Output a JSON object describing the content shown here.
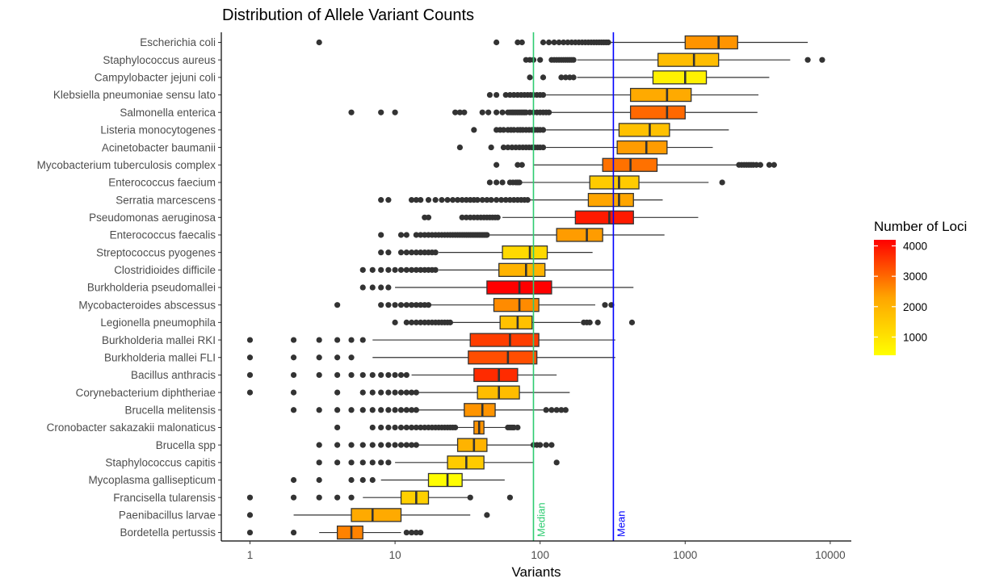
{
  "chart_data": {
    "type": "boxplot",
    "title": "Distribution of Allele Variant Counts",
    "xlabel": "Variants",
    "ylabel": "",
    "x_scale": "log10",
    "x_ticks": [
      1,
      10,
      100,
      1000,
      10000
    ],
    "x_tick_labels": [
      "1",
      "10",
      "100",
      "1000",
      "10000"
    ],
    "xlim": [
      0.64,
      12000
    ],
    "grid": false,
    "colors": {
      "axis": "#000000",
      "box_edge": "#333333",
      "median_line": "#2ecc71",
      "mean_line": "#0000ff",
      "outlier": "#333333",
      "gradient_low": "#ffff00",
      "gradient_high": "#ff0000"
    },
    "reference_lines": [
      {
        "label": "Median",
        "value": 90,
        "color": "#2ecc71"
      },
      {
        "label": "Mean",
        "value": 320,
        "color": "#0000ff"
      }
    ],
    "legend": {
      "title": "Number of Loci",
      "position": "right",
      "range": [
        400,
        4200
      ],
      "ticks": [
        1000,
        2000,
        3000,
        4000
      ],
      "tick_labels": [
        "1000",
        "2000",
        "3000",
        "4000"
      ]
    },
    "species": [
      {
        "name": "Escherichia coli",
        "loci": 2500,
        "wl": 300,
        "q1": 1000,
        "med": 1700,
        "q3": 2300,
        "wh": 7000,
        "outliers": [
          3,
          50,
          70,
          75,
          105,
          115,
          125,
          135,
          145,
          155,
          165,
          175,
          185,
          195,
          205,
          215,
          225,
          235,
          245,
          255,
          265,
          275,
          285,
          295
        ]
      },
      {
        "name": "Staphylococcus aureus",
        "loci": 1800,
        "wl": 180,
        "q1": 650,
        "med": 1150,
        "q3": 1700,
        "wh": 5300,
        "outliers": [
          80,
          85,
          90,
          100,
          120,
          125,
          130,
          135,
          140,
          145,
          150,
          155,
          160,
          165,
          170,
          7000,
          8800
        ]
      },
      {
        "name": "Campylobacter jejuni coli",
        "loci": 700,
        "wl": 180,
        "q1": 600,
        "med": 1000,
        "q3": 1400,
        "wh": 3800,
        "outliers": [
          85,
          105,
          140,
          150,
          160,
          170
        ]
      },
      {
        "name": "Klebsiella pneumoniae sensu lato",
        "loci": 2200,
        "wl": 110,
        "q1": 420,
        "med": 750,
        "q3": 1100,
        "wh": 3200,
        "outliers": [
          45,
          50,
          58,
          62,
          66,
          70,
          74,
          78,
          82,
          86,
          90,
          95,
          100,
          105
        ]
      },
      {
        "name": "Salmonella enterica",
        "loci": 3000,
        "wl": 120,
        "q1": 420,
        "med": 750,
        "q3": 1000,
        "wh": 3150,
        "outliers": [
          5,
          8,
          10,
          26,
          28,
          30,
          40,
          44,
          50,
          55,
          60,
          62,
          64,
          66,
          68,
          70,
          72,
          74,
          76,
          78,
          80,
          85,
          90,
          95,
          100,
          105,
          110,
          115
        ]
      },
      {
        "name": "Listeria monocytogenes",
        "loci": 1700,
        "wl": 110,
        "q1": 350,
        "med": 570,
        "q3": 780,
        "wh": 2000,
        "outliers": [
          35,
          50,
          53,
          56,
          60,
          63,
          66,
          70,
          73,
          76,
          80,
          84,
          88,
          92,
          96,
          100,
          105
        ]
      },
      {
        "name": "Acinetobacter baumanii",
        "loci": 2400,
        "wl": 110,
        "q1": 340,
        "med": 540,
        "q3": 750,
        "wh": 1550,
        "outliers": [
          28,
          46,
          56,
          60,
          64,
          68,
          72,
          76,
          80,
          84,
          88,
          92,
          96,
          100,
          105
        ]
      },
      {
        "name": "Mycobacterium tuberculosis complex",
        "loci": 2900,
        "wl": 90,
        "q1": 270,
        "med": 420,
        "q3": 640,
        "wh": 2300,
        "outliers": [
          50,
          70,
          75,
          2350,
          2450,
          2550,
          2650,
          2750,
          2850,
          2950,
          3100,
          3300,
          3800,
          4100
        ]
      },
      {
        "name": "Enterococcus faecium",
        "loci": 1500,
        "wl": 75,
        "q1": 220,
        "med": 350,
        "q3": 480,
        "wh": 1450,
        "outliers": [
          45,
          50,
          55,
          62,
          65,
          68,
          70,
          72,
          1800
        ]
      },
      {
        "name": "Serratia marcescens",
        "loci": 2300,
        "wl": 85,
        "q1": 215,
        "med": 350,
        "q3": 440,
        "wh": 700,
        "outliers": [
          8,
          9,
          13,
          14,
          15,
          17,
          19,
          21,
          23,
          25,
          27,
          29,
          31,
          33,
          35,
          37,
          40,
          43,
          46,
          50,
          54,
          58,
          62,
          66,
          70,
          74,
          78,
          82
        ]
      },
      {
        "name": "Pseudomonas aeruginosa",
        "loci": 3900,
        "wl": 55,
        "q1": 175,
        "med": 300,
        "q3": 440,
        "wh": 1230,
        "outliers": [
          16,
          17,
          29,
          31,
          33,
          35,
          37,
          39,
          41,
          43,
          45,
          47,
          49,
          51
        ]
      },
      {
        "name": "Enterococcus faecalis",
        "loci": 2400,
        "wl": 45,
        "q1": 130,
        "med": 210,
        "q3": 270,
        "wh": 720,
        "outliers": [
          8,
          11,
          12,
          14,
          15,
          16,
          17,
          18,
          19,
          20,
          21,
          22,
          23,
          24,
          25,
          26,
          27,
          28,
          29,
          30,
          31,
          32,
          33,
          34,
          35,
          36,
          37,
          38,
          39,
          40,
          41,
          42,
          43
        ]
      },
      {
        "name": "Streptococcus pyogenes",
        "loci": 1200,
        "wl": 20,
        "q1": 55,
        "med": 85,
        "q3": 112,
        "wh": 230,
        "outliers": [
          8,
          9,
          11,
          12,
          13,
          14,
          15,
          16,
          17,
          18,
          19
        ]
      },
      {
        "name": "Clostridioides difficile",
        "loci": 2000,
        "wl": 20,
        "q1": 52,
        "med": 80,
        "q3": 108,
        "wh": 320,
        "outliers": [
          6,
          7,
          8,
          9,
          10,
          11,
          12,
          13,
          14,
          15,
          16,
          17,
          18,
          19
        ]
      },
      {
        "name": "Burkholderia pseudomallei",
        "loci": 4200,
        "wl": 10,
        "q1": 43,
        "med": 72,
        "q3": 120,
        "wh": 440,
        "outliers": [
          6,
          7,
          8,
          9
        ]
      },
      {
        "name": "Mycobacteroides abscessus",
        "loci": 2600,
        "wl": 17,
        "q1": 48,
        "med": 72,
        "q3": 98,
        "wh": 240,
        "outliers": [
          4,
          8,
          9,
          10,
          11,
          12,
          13,
          14,
          15,
          16,
          17,
          280,
          310
        ]
      },
      {
        "name": "Legionella pneumophila",
        "loci": 1700,
        "wl": 24,
        "q1": 53,
        "med": 70,
        "q3": 88,
        "wh": 190,
        "outliers": [
          10,
          12,
          13,
          14,
          15,
          16,
          17,
          18,
          19,
          20,
          21,
          22,
          23,
          24,
          200,
          210,
          220,
          250,
          430
        ]
      },
      {
        "name": "Burkholderia mallei RKI",
        "loci": 3500,
        "wl": 7,
        "q1": 33,
        "med": 62,
        "q3": 98,
        "wh": 330,
        "outliers": [
          1,
          2,
          3,
          4,
          5,
          6
        ]
      },
      {
        "name": "Burkholderia mallei FLI",
        "loci": 3300,
        "wl": 7,
        "q1": 32,
        "med": 60,
        "q3": 95,
        "wh": 330,
        "outliers": [
          1,
          2,
          3,
          4,
          5
        ]
      },
      {
        "name": "Bacillus anthracis",
        "loci": 3700,
        "wl": 13,
        "q1": 35,
        "med": 52,
        "q3": 70,
        "wh": 130,
        "outliers": [
          1,
          2,
          3,
          4,
          5,
          6,
          7,
          8,
          9,
          10,
          11,
          12
        ]
      },
      {
        "name": "Corynebacterium diphtheriae",
        "loci": 1800,
        "wl": 14,
        "q1": 37,
        "med": 52,
        "q3": 72,
        "wh": 160,
        "outliers": [
          1,
          2,
          4,
          6,
          7,
          8,
          9,
          10,
          11,
          12,
          13,
          14
        ]
      },
      {
        "name": "Brucella melitensis",
        "loci": 2500,
        "wl": 14,
        "q1": 30,
        "med": 40,
        "q3": 49,
        "wh": 105,
        "outliers": [
          2,
          3,
          4,
          5,
          6,
          7,
          8,
          9,
          10,
          11,
          12,
          13,
          14,
          110,
          120,
          130,
          140,
          150
        ]
      },
      {
        "name": "Cronobacter sakazakii malonaticus",
        "loci": 2500,
        "wl": 26,
        "q1": 35,
        "med": 38,
        "q3": 41,
        "wh": 60,
        "outliers": [
          4,
          7,
          8,
          9,
          10,
          11,
          12,
          13,
          14,
          15,
          16,
          17,
          18,
          19,
          20,
          21,
          22,
          23,
          24,
          25,
          26,
          60,
          62,
          64,
          66,
          70
        ]
      },
      {
        "name": "Brucella spp",
        "loci": 2000,
        "wl": 14,
        "q1": 27,
        "med": 35,
        "q3": 43,
        "wh": 90,
        "outliers": [
          3,
          4,
          5,
          6,
          7,
          8,
          9,
          10,
          11,
          12,
          13,
          14,
          90,
          95,
          100,
          110,
          120
        ]
      },
      {
        "name": "Staphylococcus capitis",
        "loci": 1500,
        "wl": 10,
        "q1": 23,
        "med": 31,
        "q3": 41,
        "wh": 90,
        "outliers": [
          3,
          4,
          5,
          6,
          7,
          8,
          9,
          130
        ]
      },
      {
        "name": "Mycoplasma gallisepticum",
        "loci": 450,
        "wl": 8,
        "q1": 17,
        "med": 23,
        "q3": 29,
        "wh": 57,
        "outliers": [
          2,
          3,
          5,
          6,
          7
        ]
      },
      {
        "name": "Francisella tularensis",
        "loci": 1400,
        "wl": 6,
        "q1": 11,
        "med": 14,
        "q3": 17,
        "wh": 32,
        "outliers": [
          1,
          2,
          3,
          4,
          5,
          33,
          62
        ]
      },
      {
        "name": "Paenibacillus larvae",
        "loci": 2200,
        "wl": 2,
        "q1": 5,
        "med": 7,
        "q3": 11,
        "wh": 33,
        "outliers": [
          1,
          43
        ]
      },
      {
        "name": "Bordetella pertussis",
        "loci": 2700,
        "wl": 3,
        "q1": 4,
        "med": 5,
        "q3": 6,
        "wh": 11,
        "outliers": [
          1,
          2,
          12,
          13,
          14,
          15
        ]
      }
    ]
  }
}
